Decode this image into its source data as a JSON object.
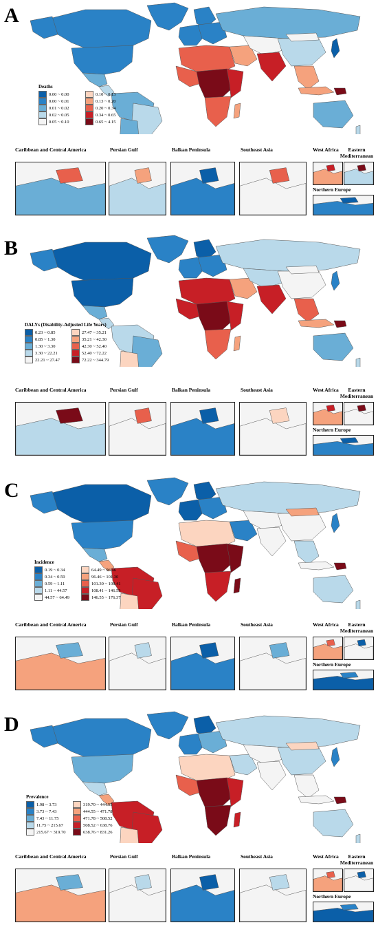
{
  "colors": {
    "ocean": "#ffffff",
    "blue": [
      "#0b5fa8",
      "#2a82c6",
      "#6aaed6",
      "#b9d9ea",
      "#f4f4f4"
    ],
    "red": [
      "#fcd5c0",
      "#f5a27d",
      "#e8604c",
      "#c71f26",
      "#7a0b18"
    ]
  },
  "panels": [
    {
      "letter": "A",
      "legend_title": "Deaths",
      "legend": [
        "0.00 ~ 0.00",
        "0.00 ~ 0.01",
        "0.01 ~ 0.02",
        "0.02 ~ 0.05",
        "0.05 ~ 0.10",
        "0.10 ~ 0.13",
        "0.13 ~ 0.20",
        "0.20 ~ 0.34",
        "0.34 ~ 0.65",
        "0.65 ~ 4.15"
      ]
    },
    {
      "letter": "B",
      "legend_title": "DALYs (Disability-Adjusted Life Years)",
      "legend": [
        "0.23 ~ 0.85",
        "0.85 ~ 1.30",
        "1.30 ~ 3.30",
        "3.30 ~ 22.21",
        "22.21 ~ 27.47",
        "27.47 ~ 35.21",
        "35.21 ~ 42.30",
        "42.30 ~ 52.40",
        "52.40 ~ 72.22",
        "72.22 ~ 344.79"
      ]
    },
    {
      "letter": "C",
      "legend_title": "Incidence",
      "legend": [
        "0.19 ~ 0.34",
        "0.34 ~ 0.59",
        "0.59 ~ 1.11",
        "1.11 ~ 44.57",
        "44.57 ~ 64.49",
        "64.49 ~ 96.46",
        "96.46 ~ 101.30",
        "101.30 ~ 108.41",
        "108.41 ~ 146.55",
        "146.55 ~ 176.37"
      ]
    },
    {
      "letter": "D",
      "legend_title": "Prevalence",
      "legend": [
        "1.98 ~ 3.73",
        "3.73 ~ 7.43",
        "7.43 ~ 11.75",
        "11.75 ~ 215.67",
        "215.67 ~ 319.70",
        "319.70 ~ 444.55",
        "444.55 ~ 471.78",
        "471.78 ~ 508.52",
        "508.52 ~ 638.76",
        "638.76 ~ 831.26"
      ]
    }
  ],
  "inset_labels": {
    "caribbean": "Caribbean and Central America",
    "persian_gulf": "Persian Gulf",
    "balkan": "Balkan Peninsula",
    "southeast_asia": "Southeast Asia",
    "west_africa": "West Africa",
    "eastern_med": "Eastern Mediterranean",
    "northern_europe": "Northern Europe"
  }
}
